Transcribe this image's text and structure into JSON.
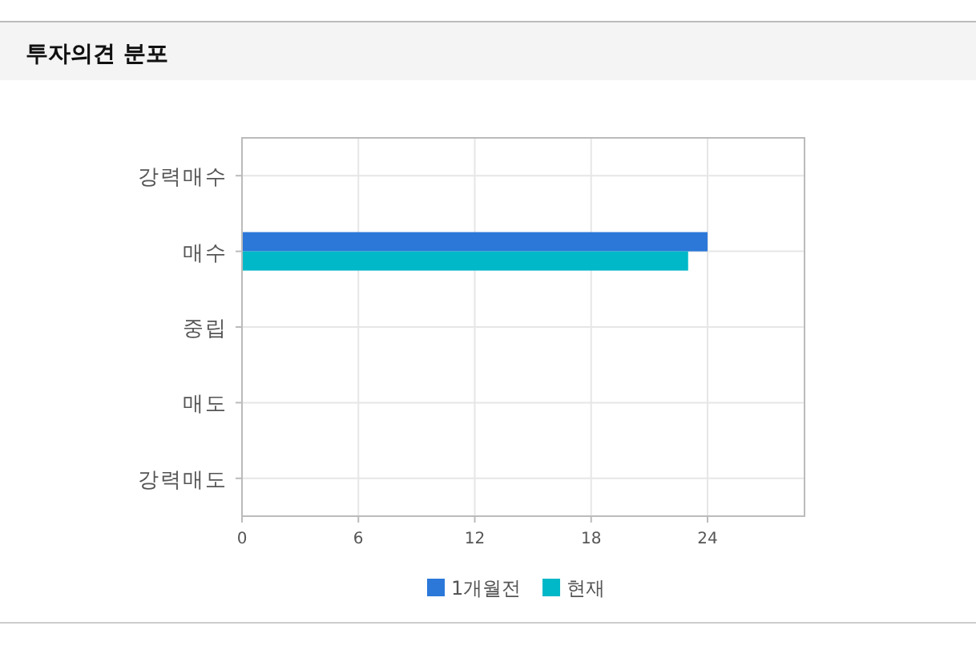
{
  "chart_data": {
    "type": "bar",
    "orientation": "horizontal",
    "title": "투자의견 분포",
    "categories": [
      "강력매수",
      "매수",
      "중립",
      "매도",
      "강력매도"
    ],
    "series": [
      {
        "name": "1개월전",
        "color": "#2b78d9",
        "values": [
          0,
          24,
          0,
          0,
          0
        ]
      },
      {
        "name": "현재",
        "color": "#00b8c8",
        "values": [
          0,
          23,
          0,
          0,
          0
        ]
      }
    ],
    "xlim": [
      0,
      29
    ],
    "xticks": [
      0,
      6,
      12,
      18,
      24
    ],
    "grid": true,
    "legend": "bottom"
  }
}
